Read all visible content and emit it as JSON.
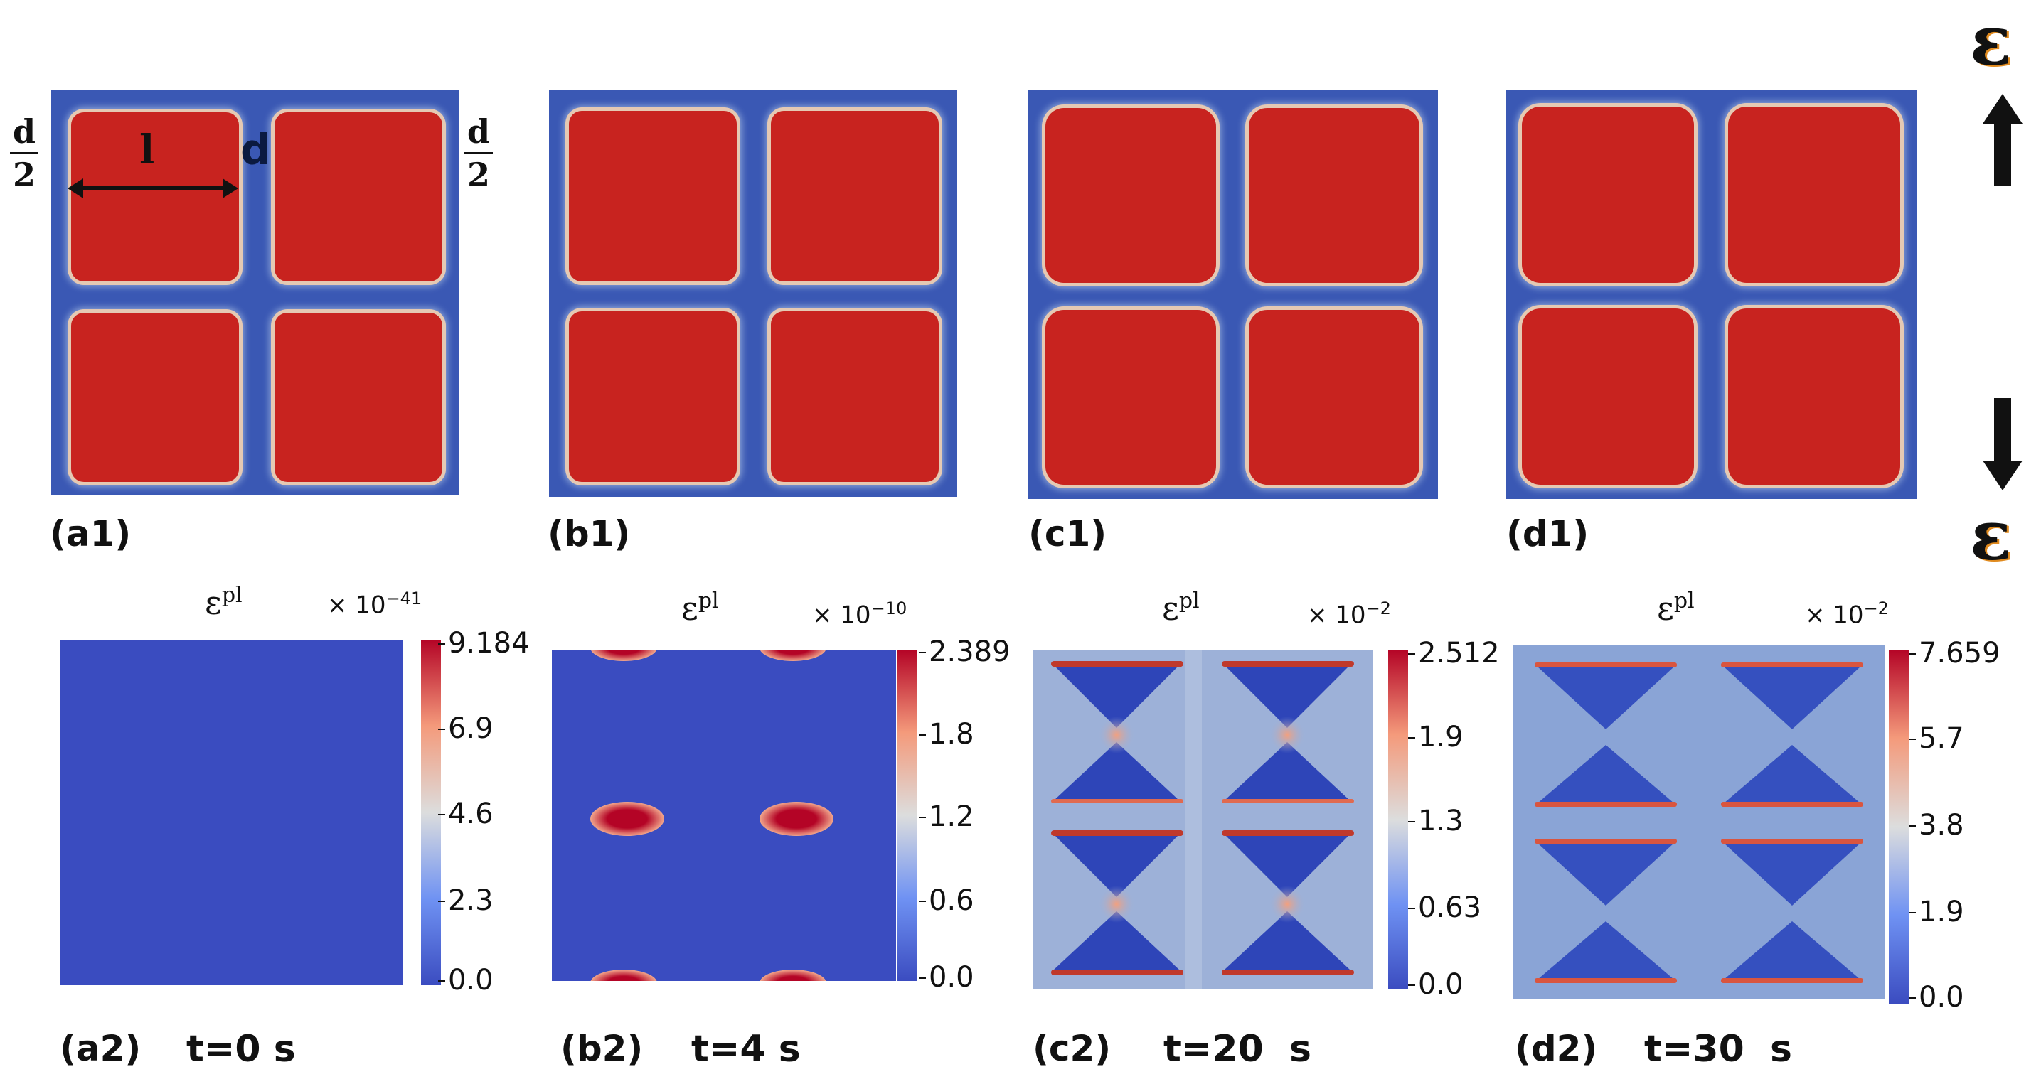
{
  "top_panels": [
    {
      "label": "(a1)"
    },
    {
      "label": "(b1)"
    },
    {
      "label": "(c1)"
    },
    {
      "label": "(d1)"
    }
  ],
  "annotations": {
    "l": "l",
    "d": "d",
    "frac_num": "d",
    "frac_den": "2",
    "strain_symbol": "ε"
  },
  "bottom_panels": [
    {
      "label": "(a2)",
      "time": "t=0 s",
      "field": "ε",
      "field_sup": "pl",
      "scale_base": "× 10",
      "scale_exp": "−41",
      "ticks": [
        "9.184",
        "6.9",
        "4.6",
        "2.3",
        "0.0"
      ]
    },
    {
      "label": "(b2)",
      "time": "t=4 s",
      "field": "ε",
      "field_sup": "pl",
      "scale_base": "× 10",
      "scale_exp": "−10",
      "ticks": [
        "2.389",
        "1.8",
        "1.2",
        "0.6",
        "0.0"
      ]
    },
    {
      "label": "(c2)",
      "time": "t=20  s",
      "field": "ε",
      "field_sup": "pl",
      "scale_base": "× 10",
      "scale_exp": "−2",
      "ticks": [
        "2.512",
        "1.9",
        "1.3",
        "0.63",
        "0.0"
      ]
    },
    {
      "label": "(d2)",
      "time": "t=30  s",
      "field": "ε",
      "field_sup": "pl",
      "scale_base": "× 10",
      "scale_exp": "−2",
      "ticks": [
        "7.659",
        "5.7",
        "3.8",
        "1.9",
        "0.0"
      ]
    }
  ],
  "colors": {
    "matrix_blue": "#3a58b4",
    "inclusion_red": "#c8231f",
    "colormap_low": "#3b4cc0",
    "colormap_mid": "#dcdddd",
    "colormap_high": "#b40426"
  }
}
